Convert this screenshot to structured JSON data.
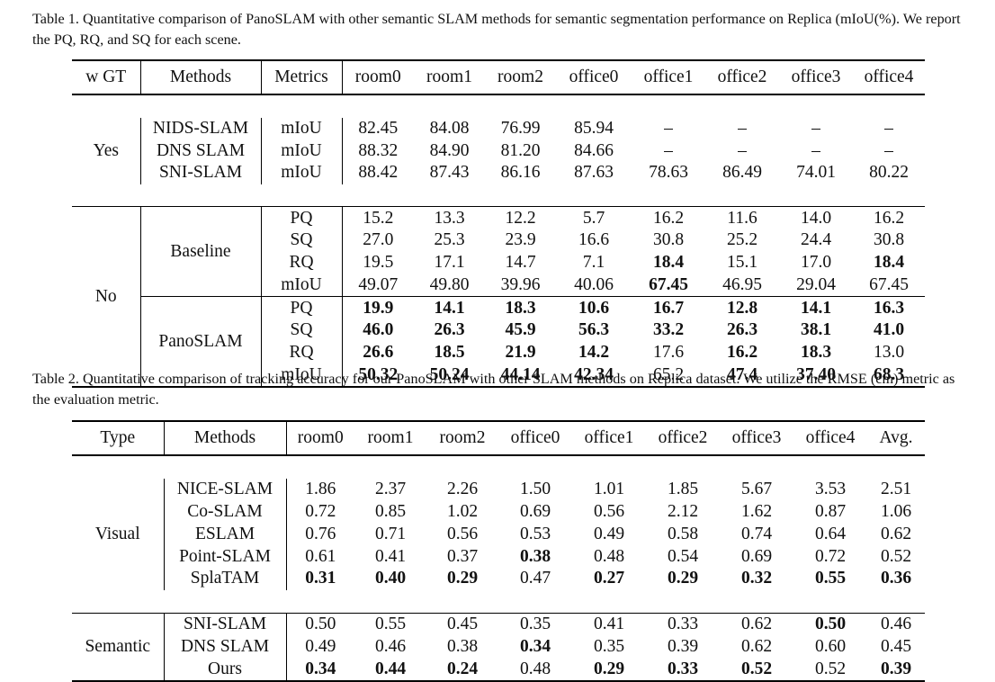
{
  "table1": {
    "caption": "Table 1. Quantitative comparison of PanoSLAM with other semantic SLAM methods for semantic segmentation performance on Replica (mIoU(%). We report the PQ, RQ, and SQ for each scene.",
    "headers": [
      "w GT",
      "Methods",
      "Metrics",
      "room0",
      "room1",
      "room2",
      "office0",
      "office1",
      "office2",
      "office3",
      "office4"
    ],
    "yes_label": "Yes",
    "no_label": "No",
    "yes_rows": [
      {
        "method": "NIDS-SLAM",
        "metric": "mIoU",
        "values": [
          "82.45",
          "84.08",
          "76.99",
          "85.94",
          "–",
          "–",
          "–",
          "–"
        ]
      },
      {
        "method": "DNS SLAM",
        "metric": "mIoU",
        "values": [
          "88.32",
          "84.90",
          "81.20",
          "84.66",
          "–",
          "–",
          "–",
          "–"
        ]
      },
      {
        "method": "SNI-SLAM",
        "metric": "mIoU",
        "values": [
          "88.42",
          "87.43",
          "86.16",
          "87.63",
          "78.63",
          "86.49",
          "74.01",
          "80.22"
        ]
      }
    ],
    "baseline": {
      "method": "Baseline",
      "rows": [
        {
          "metric": "PQ",
          "values": [
            "15.2",
            "13.3",
            "12.2",
            "5.7",
            "16.2",
            "11.6",
            "14.0",
            "16.2"
          ],
          "bold": [
            false,
            false,
            false,
            false,
            false,
            false,
            false,
            false
          ]
        },
        {
          "metric": "SQ",
          "values": [
            "27.0",
            "25.3",
            "23.9",
            "16.6",
            "30.8",
            "25.2",
            "24.4",
            "30.8"
          ],
          "bold": [
            false,
            false,
            false,
            false,
            false,
            false,
            false,
            false
          ]
        },
        {
          "metric": "RQ",
          "values": [
            "19.5",
            "17.1",
            "14.7",
            "7.1",
            "18.4",
            "15.1",
            "17.0",
            "18.4"
          ],
          "bold": [
            false,
            false,
            false,
            false,
            true,
            false,
            false,
            true
          ]
        },
        {
          "metric": "mIoU",
          "values": [
            "49.07",
            "49.80",
            "39.96",
            "40.06",
            "67.45",
            "46.95",
            "29.04",
            "67.45"
          ],
          "bold": [
            false,
            false,
            false,
            false,
            true,
            false,
            false,
            false
          ]
        }
      ]
    },
    "panoslam": {
      "method": "PanoSLAM",
      "rows": [
        {
          "metric": "PQ",
          "values": [
            "19.9",
            "14.1",
            "18.3",
            "10.6",
            "16.7",
            "12.8",
            "14.1",
            "16.3"
          ],
          "bold": [
            true,
            true,
            true,
            true,
            true,
            true,
            true,
            true
          ]
        },
        {
          "metric": "SQ",
          "values": [
            "46.0",
            "26.3",
            "45.9",
            "56.3",
            "33.2",
            "26.3",
            "38.1",
            "41.0"
          ],
          "bold": [
            true,
            true,
            true,
            true,
            true,
            true,
            true,
            true
          ]
        },
        {
          "metric": "RQ",
          "values": [
            "26.6",
            "18.5",
            "21.9",
            "14.2",
            "17.6",
            "16.2",
            "18.3",
            "13.0"
          ],
          "bold": [
            true,
            true,
            true,
            true,
            false,
            true,
            true,
            false
          ]
        },
        {
          "metric": "mIoU",
          "values": [
            "50.32",
            "50.24",
            "44.14",
            "42.34",
            "65.2",
            "47.4",
            "37.40",
            "68.3"
          ],
          "bold": [
            true,
            true,
            true,
            true,
            false,
            true,
            true,
            true
          ]
        }
      ]
    }
  },
  "table2": {
    "caption": "Table 2. Quantitative comparison of tracking accuracy for our PanoSLAM with other SLAM methods on Replica dataset. We utilize the RMSE (cm) metric as the evaluation metric.",
    "headers": [
      "Type",
      "Methods",
      "room0",
      "room1",
      "room2",
      "office0",
      "office1",
      "office2",
      "office3",
      "office4",
      "Avg."
    ],
    "visual": {
      "label": "Visual",
      "rows": [
        {
          "method": "NICE-SLAM",
          "values": [
            "1.86",
            "2.37",
            "2.26",
            "1.50",
            "1.01",
            "1.85",
            "5.67",
            "3.53",
            "2.51"
          ],
          "bold": [
            false,
            false,
            false,
            false,
            false,
            false,
            false,
            false,
            false
          ]
        },
        {
          "method": "Co-SLAM",
          "values": [
            "0.72",
            "0.85",
            "1.02",
            "0.69",
            "0.56",
            "2.12",
            "1.62",
            "0.87",
            "1.06"
          ],
          "bold": [
            false,
            false,
            false,
            false,
            false,
            false,
            false,
            false,
            false
          ]
        },
        {
          "method": "ESLAM",
          "values": [
            "0.76",
            "0.71",
            "0.56",
            "0.53",
            "0.49",
            "0.58",
            "0.74",
            "0.64",
            "0.62"
          ],
          "bold": [
            false,
            false,
            false,
            false,
            false,
            false,
            false,
            false,
            false
          ]
        },
        {
          "method": "Point-SLAM",
          "values": [
            "0.61",
            "0.41",
            "0.37",
            "0.38",
            "0.48",
            "0.54",
            "0.69",
            "0.72",
            "0.52"
          ],
          "bold": [
            false,
            false,
            false,
            true,
            false,
            false,
            false,
            false,
            false
          ]
        },
        {
          "method": "SplaTAM",
          "values": [
            "0.31",
            "0.40",
            "0.29",
            "0.47",
            "0.27",
            "0.29",
            "0.32",
            "0.55",
            "0.36"
          ],
          "bold": [
            true,
            true,
            true,
            false,
            true,
            true,
            true,
            true,
            true
          ]
        }
      ]
    },
    "semantic": {
      "label": "Semantic",
      "rows": [
        {
          "method": "SNI-SLAM",
          "values": [
            "0.50",
            "0.55",
            "0.45",
            "0.35",
            "0.41",
            "0.33",
            "0.62",
            "0.50",
            "0.46"
          ],
          "bold": [
            false,
            false,
            false,
            false,
            false,
            false,
            false,
            true,
            false
          ]
        },
        {
          "method": "DNS SLAM",
          "values": [
            "0.49",
            "0.46",
            "0.38",
            "0.34",
            "0.35",
            "0.39",
            "0.62",
            "0.60",
            "0.45"
          ],
          "bold": [
            false,
            false,
            false,
            true,
            false,
            false,
            false,
            false,
            false
          ]
        },
        {
          "method": "Ours",
          "values": [
            "0.34",
            "0.44",
            "0.24",
            "0.48",
            "0.29",
            "0.33",
            "0.52",
            "0.52",
            "0.39"
          ],
          "bold": [
            true,
            true,
            true,
            false,
            true,
            true,
            true,
            false,
            true
          ]
        }
      ]
    }
  }
}
